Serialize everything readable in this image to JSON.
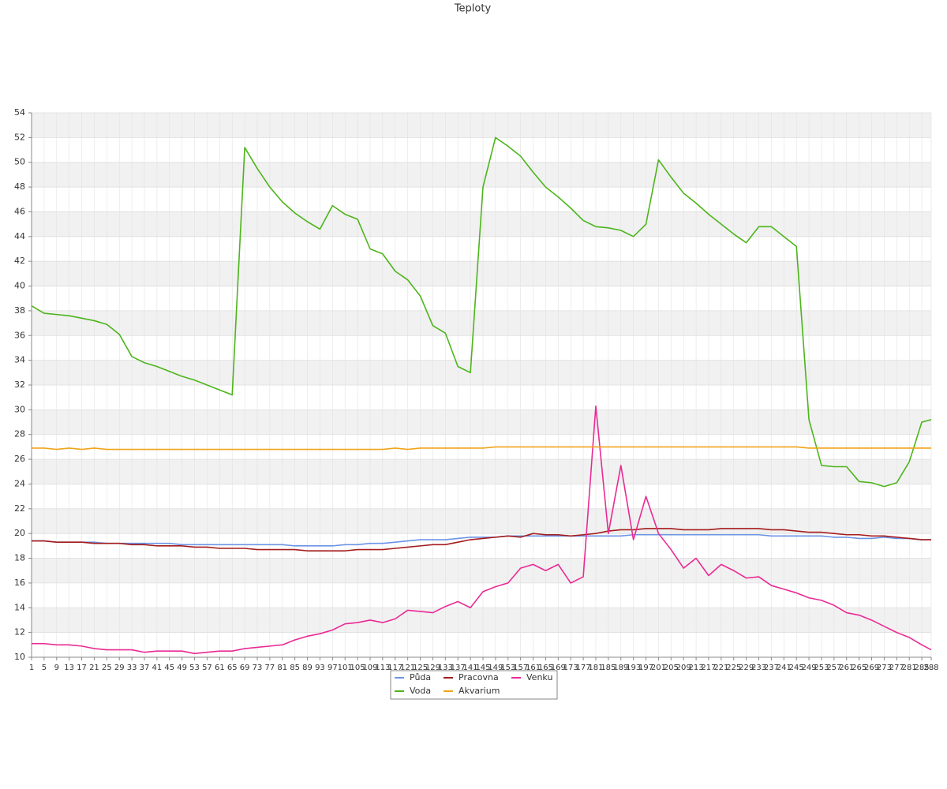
{
  "chart_data": {
    "type": "line",
    "title": "Teploty",
    "x": [
      1,
      5,
      9,
      13,
      17,
      21,
      25,
      29,
      33,
      37,
      41,
      45,
      49,
      53,
      57,
      61,
      65,
      69,
      73,
      77,
      81,
      85,
      89,
      93,
      97,
      101,
      105,
      109,
      113,
      117,
      121,
      125,
      129,
      133,
      137,
      141,
      145,
      149,
      153,
      157,
      161,
      165,
      169,
      173,
      177,
      181,
      185,
      189,
      193,
      197,
      201,
      205,
      209,
      213,
      217,
      221,
      225,
      229,
      233,
      237,
      241,
      245,
      249,
      253,
      257,
      261,
      265,
      269,
      273,
      277,
      281,
      285,
      288
    ],
    "xlim": [
      1,
      288
    ],
    "ylim": [
      10,
      54
    ],
    "yticks": [
      10,
      12,
      14,
      16,
      18,
      20,
      22,
      24,
      26,
      28,
      30,
      32,
      34,
      36,
      38,
      40,
      42,
      44,
      46,
      48,
      50,
      52,
      54
    ],
    "grid": true,
    "legend": "bottom",
    "series": [
      {
        "name": "Půda",
        "color": "#6c94e6",
        "values": [
          19.4,
          19.4,
          19.3,
          19.3,
          19.3,
          19.3,
          19.2,
          19.2,
          19.2,
          19.2,
          19.2,
          19.2,
          19.1,
          19.1,
          19.1,
          19.1,
          19.1,
          19.1,
          19.1,
          19.1,
          19.1,
          19.0,
          19.0,
          19.0,
          19.0,
          19.1,
          19.1,
          19.2,
          19.2,
          19.3,
          19.4,
          19.5,
          19.5,
          19.5,
          19.6,
          19.7,
          19.7,
          19.7,
          19.8,
          19.8,
          19.8,
          19.8,
          19.8,
          19.8,
          19.8,
          19.8,
          19.8,
          19.8,
          19.9,
          19.9,
          19.9,
          19.9,
          19.9,
          19.9,
          19.9,
          19.9,
          19.9,
          19.9,
          19.9,
          19.8,
          19.8,
          19.8,
          19.8,
          19.8,
          19.7,
          19.7,
          19.6,
          19.6,
          19.7,
          19.6,
          19.6,
          19.5,
          19.5
        ]
      },
      {
        "name": "Pracovna",
        "color": "#a51c1c",
        "values": [
          19.4,
          19.4,
          19.3,
          19.3,
          19.3,
          19.2,
          19.2,
          19.2,
          19.1,
          19.1,
          19.0,
          19.0,
          19.0,
          18.9,
          18.9,
          18.8,
          18.8,
          18.8,
          18.7,
          18.7,
          18.7,
          18.7,
          18.6,
          18.6,
          18.6,
          18.6,
          18.7,
          18.7,
          18.7,
          18.8,
          18.9,
          19.0,
          19.1,
          19.1,
          19.3,
          19.5,
          19.6,
          19.7,
          19.8,
          19.7,
          20.0,
          19.9,
          19.9,
          19.8,
          19.9,
          20.0,
          20.2,
          20.3,
          20.3,
          20.4,
          20.4,
          20.4,
          20.3,
          20.3,
          20.3,
          20.4,
          20.4,
          20.4,
          20.4,
          20.3,
          20.3,
          20.2,
          20.1,
          20.1,
          20.0,
          19.9,
          19.9,
          19.8,
          19.8,
          19.7,
          19.6,
          19.5,
          19.5
        ]
      },
      {
        "name": "Venku",
        "color": "#ea2a94",
        "values": [
          11.1,
          11.1,
          11.0,
          11.0,
          10.9,
          10.7,
          10.6,
          10.6,
          10.6,
          10.4,
          10.5,
          10.5,
          10.5,
          10.3,
          10.4,
          10.5,
          10.5,
          10.7,
          10.8,
          10.9,
          11.0,
          11.4,
          11.7,
          11.9,
          12.2,
          12.7,
          12.8,
          13.0,
          12.8,
          13.1,
          13.8,
          13.7,
          13.6,
          14.1,
          14.5,
          14.0,
          15.3,
          15.7,
          16.0,
          17.2,
          17.5,
          17.0,
          17.5,
          16.0,
          16.5,
          30.3,
          20.0,
          25.5,
          19.5,
          23.0,
          20.0,
          18.7,
          17.2,
          18.0,
          16.6,
          17.5,
          17.0,
          16.4,
          16.5,
          15.8,
          15.5,
          15.2,
          14.8,
          14.6,
          14.2,
          13.6,
          13.4,
          13.0,
          12.5,
          12.0,
          11.6,
          11.0,
          10.6
        ]
      },
      {
        "name": "Voda",
        "color": "#4cb51a",
        "values": [
          38.4,
          37.8,
          37.7,
          37.6,
          37.4,
          37.2,
          36.9,
          36.1,
          34.3,
          33.8,
          33.5,
          33.1,
          32.7,
          32.4,
          32.0,
          31.6,
          31.2,
          51.2,
          49.5,
          48.0,
          46.8,
          45.9,
          45.2,
          44.6,
          46.5,
          45.8,
          45.4,
          43.0,
          42.6,
          41.2,
          40.5,
          39.2,
          36.8,
          36.2,
          33.5,
          33.0,
          48.0,
          52.0,
          51.3,
          50.5,
          49.2,
          48.0,
          47.2,
          46.3,
          45.3,
          44.8,
          44.7,
          44.5,
          44.0,
          45.0,
          50.2,
          48.8,
          47.5,
          46.7,
          45.8,
          45.0,
          44.2,
          43.5,
          44.8,
          44.8,
          44.0,
          43.2,
          29.2,
          25.5,
          25.4,
          25.4,
          24.2,
          24.1,
          23.8,
          24.1,
          25.8,
          29.0,
          29.2
        ]
      },
      {
        "name": "Akvarium",
        "color": "#f0a418",
        "values": [
          26.9,
          26.9,
          26.8,
          26.9,
          26.8,
          26.9,
          26.8,
          26.8,
          26.8,
          26.8,
          26.8,
          26.8,
          26.8,
          26.8,
          26.8,
          26.8,
          26.8,
          26.8,
          26.8,
          26.8,
          26.8,
          26.8,
          26.8,
          26.8,
          26.8,
          26.8,
          26.8,
          26.8,
          26.8,
          26.9,
          26.8,
          26.9,
          26.9,
          26.9,
          26.9,
          26.9,
          26.9,
          27.0,
          27.0,
          27.0,
          27.0,
          27.0,
          27.0,
          27.0,
          27.0,
          27.0,
          27.0,
          27.0,
          27.0,
          27.0,
          27.0,
          27.0,
          27.0,
          27.0,
          27.0,
          27.0,
          27.0,
          27.0,
          27.0,
          27.0,
          27.0,
          27.0,
          26.9,
          26.9,
          26.9,
          26.9,
          26.9,
          26.9,
          26.9,
          26.9,
          26.9,
          26.9,
          26.9
        ]
      }
    ]
  }
}
